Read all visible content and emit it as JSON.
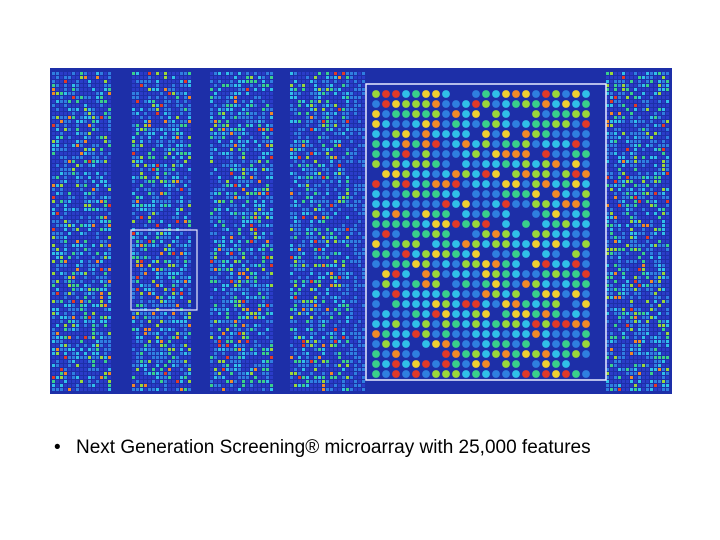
{
  "slide": {
    "bullets": [
      {
        "marker": "•",
        "text": "Next Generation Screening® microarray with 25,000 features"
      }
    ]
  },
  "image": {
    "description_icon": "microarray-scan-image",
    "colors": {
      "background": "#1d2fa8",
      "lane_gap": "#1a2a9a",
      "highlight_box": "#e8ecff",
      "spot_palette": [
        "#2a3cc8",
        "#2f7fe0",
        "#30c0e8",
        "#3ad08a",
        "#9ad83a",
        "#f0d030",
        "#f08a28",
        "#e03a28"
      ]
    }
  }
}
